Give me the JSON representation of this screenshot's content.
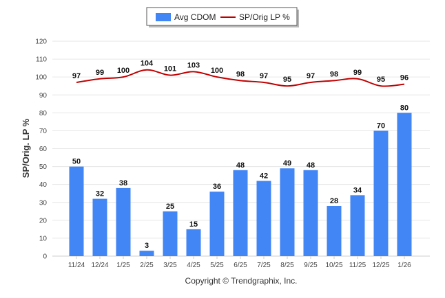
{
  "chart_data": {
    "type": "bar",
    "categories": [
      "11/24",
      "12/24",
      "1/25",
      "2/25",
      "3/25",
      "4/25",
      "5/25",
      "6/25",
      "7/25",
      "8/25",
      "9/25",
      "10/25",
      "11/25",
      "12/25",
      "1/26"
    ],
    "series": [
      {
        "name": "Avg CDOM",
        "type": "bar",
        "color": "#4285f4",
        "values": [
          50,
          32,
          38,
          3,
          25,
          15,
          36,
          48,
          42,
          49,
          48,
          28,
          34,
          70,
          80
        ]
      },
      {
        "name": "SP/Orig LP %",
        "type": "line",
        "color": "#c00000",
        "values": [
          97,
          99,
          100,
          104,
          101,
          103,
          100,
          98,
          97,
          95,
          97,
          98,
          99,
          95,
          96
        ]
      }
    ],
    "ylabel": "SP/Orig. LP %",
    "xlabel": "",
    "ylim": [
      0,
      120
    ],
    "yticks": [
      0,
      10,
      20,
      30,
      40,
      50,
      60,
      70,
      80,
      90,
      100,
      110,
      120
    ],
    "grid": true,
    "legend_position": "top-center",
    "credit": "Copyright © Trendgraphix, Inc."
  }
}
